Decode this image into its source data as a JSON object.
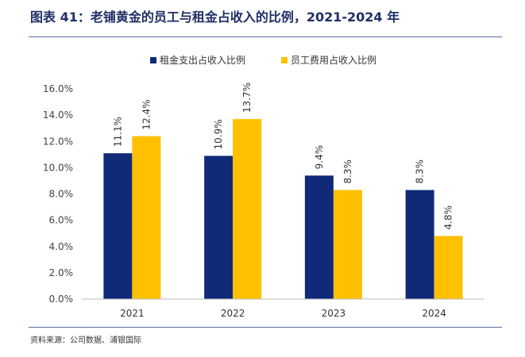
{
  "header": {
    "title": "图表 41：老铺黄金的员工与租金占收入的比例，2021-2024 年"
  },
  "footer": {
    "source": "资料来源：公司数据、浦银国际"
  },
  "colors": {
    "series_1": "#102a78",
    "series_2": "#ffc000",
    "rule": "#5a6aa0",
    "title": "#1f2f66"
  },
  "chart_data": {
    "type": "bar",
    "title": "",
    "xlabel": "",
    "ylabel": "",
    "categories": [
      "2021",
      "2022",
      "2023",
      "2024"
    ],
    "series": [
      {
        "name": "租金支出占收入比例",
        "values": [
          11.1,
          10.9,
          9.4,
          8.3
        ],
        "color": "#102a78"
      },
      {
        "name": "员工费用占收入比例",
        "values": [
          12.4,
          13.7,
          8.3,
          4.8
        ],
        "color": "#ffc000"
      }
    ],
    "ylim": [
      0,
      16
    ],
    "ytick_step": 2,
    "y_tick_labels": [
      "0.0%",
      "2.0%",
      "4.0%",
      "6.0%",
      "8.0%",
      "10.0%",
      "12.0%",
      "14.0%",
      "16.0%"
    ],
    "data_labels": [
      [
        "11.1%",
        "10.9%",
        "9.4%",
        "8.3%"
      ],
      [
        "12.4%",
        "13.7%",
        "8.3%",
        "4.8%"
      ]
    ],
    "data_label_rotation": "vertical",
    "grid": false,
    "legend_position": "top-center"
  }
}
